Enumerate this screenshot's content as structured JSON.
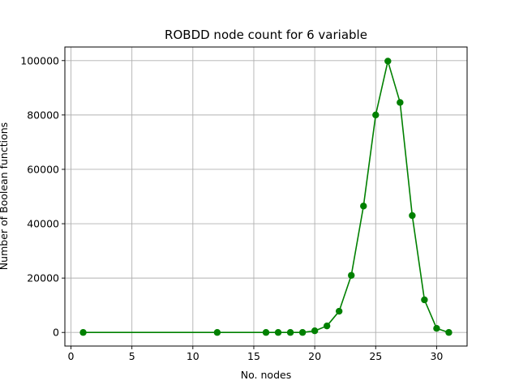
{
  "chart_data": {
    "type": "line",
    "title": "ROBDD node count for 6 variable",
    "xlabel": "No. nodes",
    "ylabel": "Number of Boolean functions",
    "xlim": [
      -0.5,
      32.5
    ],
    "ylim": [
      -5000,
      105000
    ],
    "xticks": [
      0,
      5,
      10,
      15,
      20,
      25,
      30
    ],
    "yticks": [
      0,
      20000,
      40000,
      60000,
      80000,
      100000
    ],
    "grid": true,
    "series": [
      {
        "color": "#008000",
        "marker": "circle",
        "x": [
          1,
          12,
          16,
          17,
          18,
          19,
          20,
          21,
          22,
          23,
          24,
          25,
          26,
          27,
          28,
          29,
          30,
          31
        ],
        "y": [
          0,
          0,
          0,
          0,
          0,
          0,
          600,
          2400,
          7800,
          21000,
          46500,
          80000,
          99800,
          84600,
          43000,
          12000,
          1500,
          0
        ]
      }
    ]
  }
}
